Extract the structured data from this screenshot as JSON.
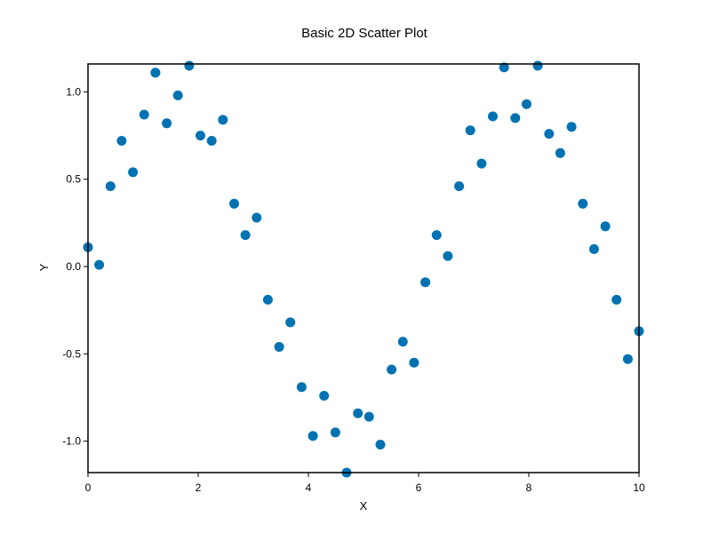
{
  "chart_data": {
    "type": "scatter",
    "title": "Basic 2D Scatter Plot",
    "xlabel": "X",
    "ylabel": "Y",
    "xlim": [
      0,
      10
    ],
    "ylim": [
      -1.18,
      1.16
    ],
    "xticks": [
      0,
      2,
      4,
      6,
      8,
      10
    ],
    "xtick_labels": [
      "0",
      "2",
      "4",
      "6",
      "8",
      "10"
    ],
    "yticks": [
      -1.0,
      -0.5,
      0.0,
      0.5,
      1.0
    ],
    "ytick_labels": [
      "-1.0",
      "-0.5",
      "0.0",
      "0.5",
      "1.0"
    ],
    "grid": false,
    "marker_color": "#0072b2",
    "series": [
      {
        "x": [
          0.0,
          0.204,
          0.408,
          0.612,
          0.816,
          1.02,
          1.224,
          1.429,
          1.633,
          1.837,
          2.041,
          2.245,
          2.449,
          2.653,
          2.857,
          3.061,
          3.265,
          3.469,
          3.673,
          3.878,
          4.082,
          4.286,
          4.49,
          4.694,
          4.898,
          5.102,
          5.306,
          5.51,
          5.714,
          5.918,
          6.122,
          6.327,
          6.531,
          6.735,
          6.939,
          7.143,
          7.347,
          7.551,
          7.755,
          7.959,
          8.163,
          8.367,
          8.571,
          8.776,
          8.98,
          9.184,
          9.388,
          9.592,
          9.796,
          10.0
        ],
        "y": [
          0.11,
          0.01,
          0.46,
          0.72,
          0.54,
          0.87,
          1.11,
          0.82,
          0.98,
          1.15,
          0.75,
          0.72,
          0.84,
          0.36,
          0.18,
          0.28,
          -0.19,
          -0.46,
          -0.32,
          -0.69,
          -0.97,
          -0.74,
          -0.95,
          -1.18,
          -0.84,
          -0.86,
          -1.02,
          -0.59,
          -0.43,
          -0.55,
          -0.09,
          0.18,
          0.06,
          0.46,
          0.78,
          0.59,
          0.86,
          1.14,
          0.85,
          0.93,
          1.15,
          0.76,
          0.65,
          0.8,
          0.36,
          0.1,
          0.23,
          -0.19,
          -0.53,
          -0.37
        ]
      }
    ]
  }
}
